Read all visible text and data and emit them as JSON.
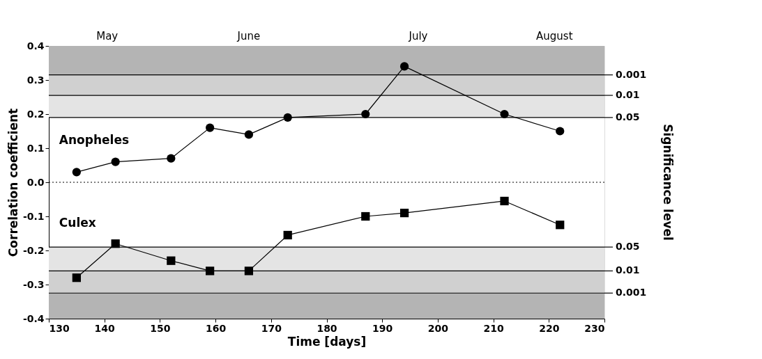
{
  "chart_data": {
    "type": "line",
    "xlabel": "Time [days]",
    "ylabel": "Correlation coefficient",
    "y2label": "Significance level",
    "xlim": [
      130,
      230
    ],
    "xticks": [
      130,
      140,
      150,
      160,
      170,
      180,
      190,
      200,
      210,
      220,
      230
    ],
    "ylim": [
      -0.4,
      0.4
    ],
    "yticks": [
      {
        "value": -0.4,
        "label": "-0.4"
      },
      {
        "value": -0.3,
        "label": "-0.3"
      },
      {
        "value": -0.2,
        "label": "-0.2"
      },
      {
        "value": -0.1,
        "label": "-0.1"
      },
      {
        "value": 0,
        "label": "0.0"
      },
      {
        "value": 0.1,
        "label": "0.1"
      },
      {
        "value": 0.2,
        "label": "0.2"
      },
      {
        "value": 0.3,
        "label": "0.3"
      },
      {
        "value": 0.4,
        "label": "0.4"
      }
    ],
    "grid": false,
    "line_style": "solid",
    "bands": [
      {
        "axis": "y",
        "from": 0.19,
        "to": 0.255,
        "color": "#e4e4e4"
      },
      {
        "axis": "y",
        "from": 0.255,
        "to": 0.315,
        "color": "#d0d0d0"
      },
      {
        "axis": "y",
        "from": 0.315,
        "to": 0.4,
        "color": "#b4b4b4"
      },
      {
        "axis": "y",
        "from": -0.26,
        "to": -0.19,
        "color": "#e4e4e4"
      },
      {
        "axis": "y",
        "from": -0.325,
        "to": -0.26,
        "color": "#d0d0d0"
      },
      {
        "axis": "y",
        "from": -0.4,
        "to": -0.325,
        "color": "#b4b4b4"
      }
    ],
    "annotations": [
      {
        "text": "May",
        "x": 140.5,
        "y": 0.4
      },
      {
        "text": "June",
        "x": 166,
        "y": 0.4
      },
      {
        "text": "July",
        "x": 196.5,
        "y": 0.4
      },
      {
        "text": "August",
        "x": 221,
        "y": 0.4
      },
      {
        "text": "0.001",
        "x": 230,
        "y": 0.315
      },
      {
        "text": "0.01",
        "x": 230,
        "y": 0.255
      },
      {
        "text": "0.05",
        "x": 230,
        "y": 0.19
      },
      {
        "text": "0.05",
        "x": 230,
        "y": -0.19
      },
      {
        "text": "0.01",
        "x": 230,
        "y": -0.26
      },
      {
        "text": "0.001",
        "x": 230,
        "y": -0.325
      }
    ],
    "ref_lines": [
      {
        "axis": "y",
        "value": 0,
        "line_style": "dotted",
        "color": "#000000"
      },
      {
        "axis": "y",
        "value": 0.315,
        "color": "#000000"
      },
      {
        "axis": "y",
        "value": 0.255,
        "color": "#000000"
      },
      {
        "axis": "y",
        "value": 0.19,
        "color": "#000000"
      },
      {
        "axis": "y",
        "value": -0.19,
        "color": "#000000"
      },
      {
        "axis": "y",
        "value": -0.26,
        "color": "#000000"
      },
      {
        "axis": "y",
        "value": -0.325,
        "color": "#000000"
      }
    ],
    "series": [
      {
        "name": "Anopheles",
        "color": "#000000",
        "marker": "circle",
        "x": [
          135,
          142,
          152,
          159,
          166,
          173,
          187,
          194,
          212,
          222
        ],
        "values": [
          0.03,
          0.06,
          0.07,
          0.16,
          0.14,
          0.19,
          0.2,
          0.34,
          0.2,
          0.15
        ]
      },
      {
        "name": "Culex",
        "color": "#000000",
        "marker": "square",
        "x": [
          135,
          142,
          152,
          159,
          166,
          173,
          187,
          194,
          212,
          222
        ],
        "values": [
          -0.28,
          -0.18,
          -0.23,
          -0.26,
          -0.26,
          -0.155,
          -0.1,
          -0.09,
          -0.055,
          -0.125
        ]
      }
    ]
  }
}
